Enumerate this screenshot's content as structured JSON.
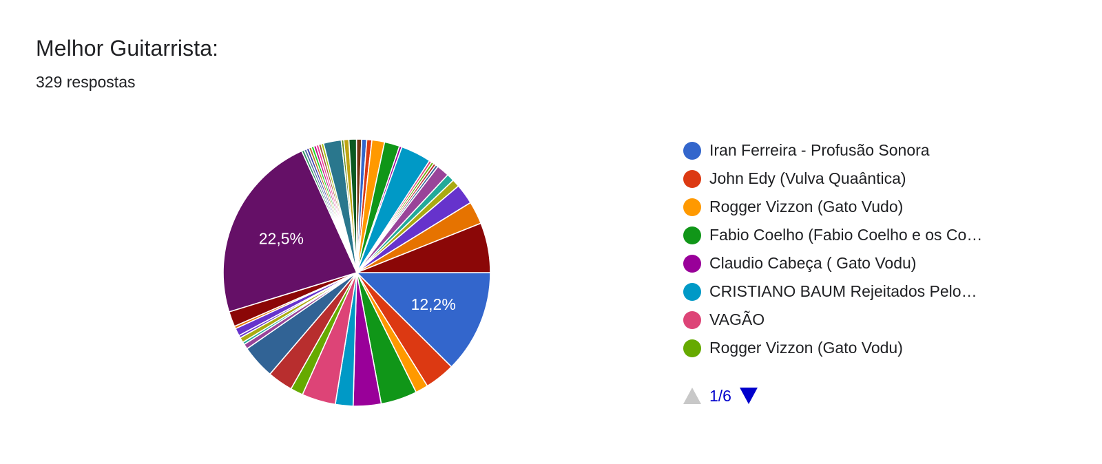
{
  "header": {
    "title": "Melhor Guitarrista:",
    "subtitle": "329 respostas"
  },
  "legend": {
    "items": [
      {
        "label": "Iran Ferreira - Profusão Sonora",
        "color": "#3366cc"
      },
      {
        "label": "John Edy (Vulva Quaântica)",
        "color": "#dc3912"
      },
      {
        "label": "Rogger Vizzon (Gato Vudo)",
        "color": "#ff9900"
      },
      {
        "label": "Fabio Coelho (Fabio Coelho e os Co…",
        "color": "#109618"
      },
      {
        "label": "Claudio Cabeça ( Gato Vodu)",
        "color": "#990099"
      },
      {
        "label": "CRISTIANO BAUM Rejeitados Pelo…",
        "color": "#0099c6"
      },
      {
        "label": "VAGÃO",
        "color": "#dd4477"
      },
      {
        "label": "Rogger Vizzon (Gato Vodu)",
        "color": "#66aa00"
      }
    ],
    "pager": {
      "text": "1/6",
      "up_color": "#c8c8c8",
      "down_color": "#0000cc"
    }
  },
  "chart_data": {
    "type": "pie",
    "title": "Melhor Guitarrista:",
    "total_responses": 329,
    "slice_labels_shown": {
      "Iran Ferreira - Profusão Sonora": "12,2%",
      "slice_22_5": "22,5%"
    },
    "slices": [
      {
        "name": "Iran Ferreira - Profusão Sonora",
        "value": 12.2,
        "color": "#3366cc",
        "label": "12,2%"
      },
      {
        "name": "John Edy (Vulva Quaântica)",
        "value": 3.6,
        "color": "#dc3912"
      },
      {
        "name": "Rogger Vizzon (Gato Vudo)",
        "value": 1.5,
        "color": "#ff9900"
      },
      {
        "name": "Fabio Coelho (Fabio Coelho e os Co…",
        "value": 4.3,
        "color": "#109618"
      },
      {
        "name": "Claudio Cabeça ( Gato Vodu)",
        "value": 3.3,
        "color": "#990099"
      },
      {
        "name": "CRISTIANO BAUM Rejeitados Pelo…",
        "value": 2.1,
        "color": "#0099c6"
      },
      {
        "name": "VAGÃO",
        "value": 4.0,
        "color": "#dd4477"
      },
      {
        "name": "Rogger Vizzon (Gato Vodu)",
        "value": 1.5,
        "color": "#66aa00"
      },
      {
        "name": "",
        "value": 3.0,
        "color": "#b82e2e"
      },
      {
        "name": "",
        "value": 4.0,
        "color": "#316395"
      },
      {
        "name": "",
        "value": 0.6,
        "color": "#994499"
      },
      {
        "name": "",
        "value": 0.3,
        "color": "#22aa99"
      },
      {
        "name": "",
        "value": 0.6,
        "color": "#aaaa11"
      },
      {
        "name": "",
        "value": 0.3,
        "color": "#6633cc"
      },
      {
        "name": "",
        "value": 0.9,
        "color": "#6633cc"
      },
      {
        "name": "",
        "value": 0.3,
        "color": "#e67300"
      },
      {
        "name": "",
        "value": 1.8,
        "color": "#8b0707"
      },
      {
        "name": "",
        "value": 22.5,
        "color": "#651067",
        "label": "22,5%"
      },
      {
        "name": "",
        "value": 0.3,
        "color": "#329262"
      },
      {
        "name": "",
        "value": 0.3,
        "color": "#5574a6"
      },
      {
        "name": "",
        "value": 0.3,
        "color": "#3b3eac"
      },
      {
        "name": "",
        "value": 0.3,
        "color": "#b77322"
      },
      {
        "name": "",
        "value": 0.3,
        "color": "#16d620"
      },
      {
        "name": "",
        "value": 0.3,
        "color": "#b91383"
      },
      {
        "name": "",
        "value": 0.3,
        "color": "#f4359e"
      },
      {
        "name": "",
        "value": 0.3,
        "color": "#9c5935"
      },
      {
        "name": "",
        "value": 0.3,
        "color": "#a9c413"
      },
      {
        "name": "",
        "value": 2.1,
        "color": "#2a778d"
      },
      {
        "name": "",
        "value": 0.3,
        "color": "#668d1c"
      },
      {
        "name": "",
        "value": 0.6,
        "color": "#bea413"
      },
      {
        "name": "",
        "value": 0.9,
        "color": "#0c5922"
      },
      {
        "name": "",
        "value": 0.6,
        "color": "#743411"
      },
      {
        "name": "",
        "value": 0.6,
        "color": "#3366cc"
      },
      {
        "name": "",
        "value": 0.6,
        "color": "#dc3912"
      },
      {
        "name": "",
        "value": 1.5,
        "color": "#ff9900"
      },
      {
        "name": "",
        "value": 1.8,
        "color": "#109618"
      },
      {
        "name": "",
        "value": 0.3,
        "color": "#990099"
      },
      {
        "name": "",
        "value": 3.6,
        "color": "#0099c6"
      },
      {
        "name": "",
        "value": 0.3,
        "color": "#dd4477"
      },
      {
        "name": "",
        "value": 0.3,
        "color": "#66aa00"
      },
      {
        "name": "",
        "value": 0.3,
        "color": "#b82e2e"
      },
      {
        "name": "",
        "value": 0.3,
        "color": "#316395"
      },
      {
        "name": "",
        "value": 1.5,
        "color": "#994499"
      },
      {
        "name": "",
        "value": 0.9,
        "color": "#22aa99"
      },
      {
        "name": "",
        "value": 0.9,
        "color": "#aaaa11"
      },
      {
        "name": "",
        "value": 2.4,
        "color": "#6633cc"
      },
      {
        "name": "",
        "value": 2.7,
        "color": "#e67300"
      },
      {
        "name": "",
        "value": 5.9,
        "color": "#8b0707"
      }
    ]
  }
}
